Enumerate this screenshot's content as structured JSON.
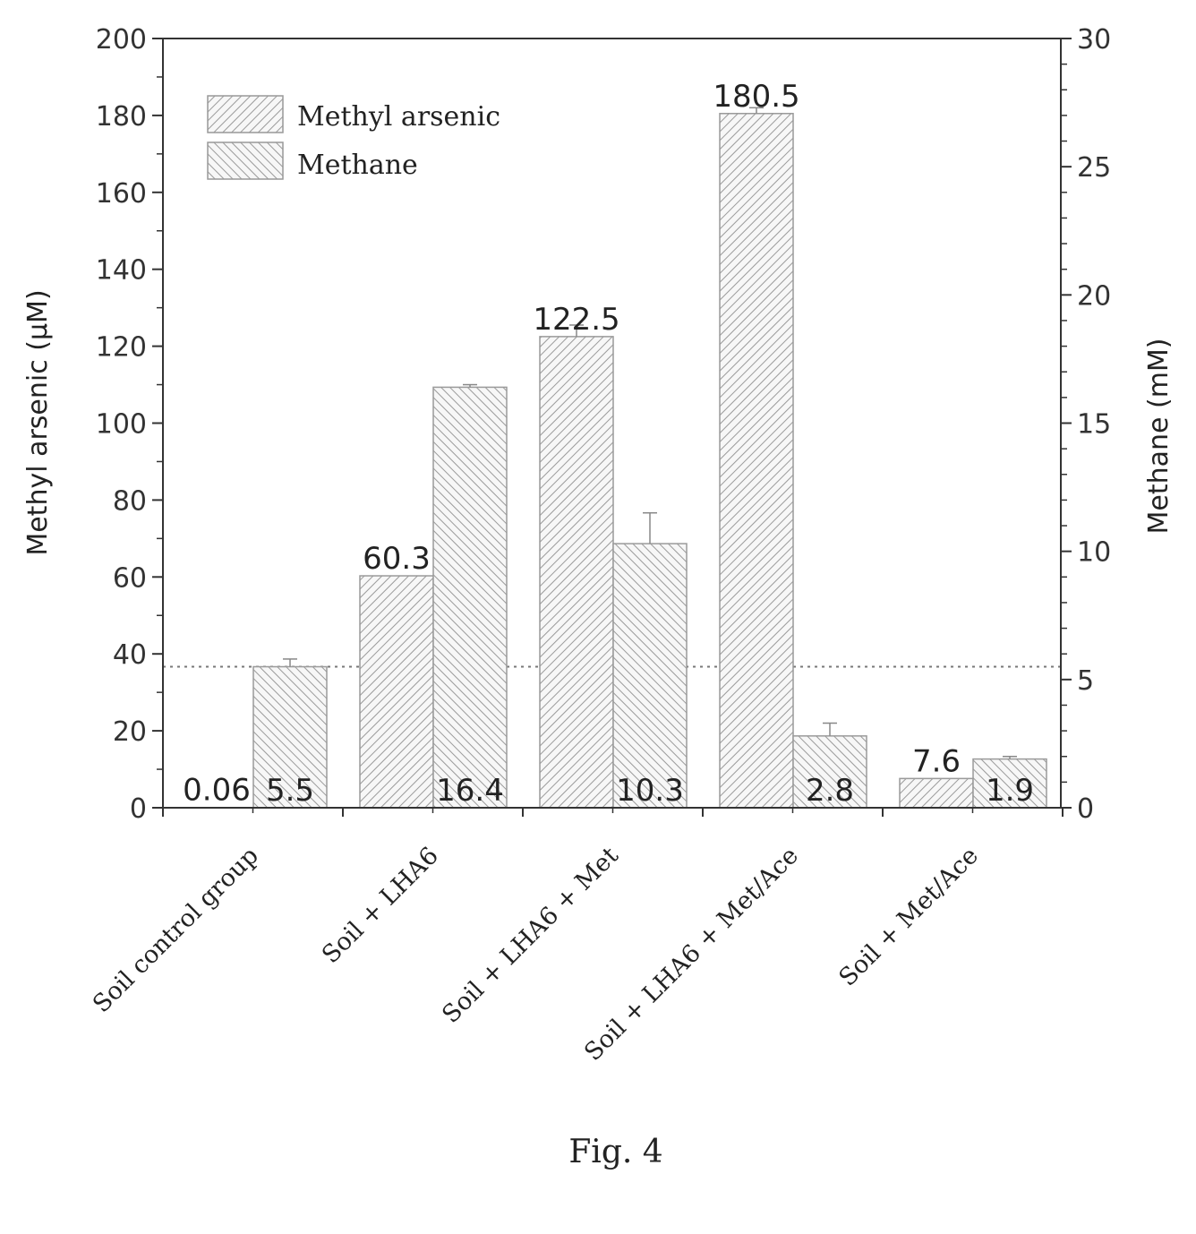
{
  "chart_data": {
    "type": "bar",
    "categories": [
      "Soil control group",
      "Soil + LHA6",
      "Soil + LHA6 + Met",
      "Soil + LHA6 + Met/Ace",
      "Soil + Met/Ace"
    ],
    "series": [
      {
        "name": "Methyl arsenic",
        "axis": "left",
        "values": [
          0.06,
          60.3,
          122.5,
          180.5,
          7.6
        ],
        "error": [
          0,
          0,
          3,
          1.5,
          0
        ],
        "labels": [
          "0.06",
          "60.3",
          "122.5",
          "180.5",
          "7.6"
        ]
      },
      {
        "name": "Methane",
        "axis": "right",
        "values": [
          5.5,
          16.4,
          10.3,
          2.8,
          1.9
        ],
        "error": [
          0.3,
          0.1,
          1.2,
          0.5,
          0.1
        ],
        "labels": [
          "5.5",
          "16.4",
          "10.3",
          "2.8",
          "1.9"
        ]
      }
    ],
    "ylabel_left": "Methyl arsenic (μM)",
    "ylabel_right": "Methane (mM)",
    "ylim_left": [
      0,
      200
    ],
    "ylim_right": [
      0,
      30
    ],
    "yticks_left": [
      "0",
      "20",
      "40",
      "60",
      "80",
      "100",
      "120",
      "140",
      "160",
      "180",
      "200"
    ],
    "yticks_right": [
      "0",
      "5",
      "10",
      "15",
      "20",
      "25",
      "30"
    ],
    "reference_line": {
      "axis": "right",
      "value": 5.5,
      "style": "dotted"
    },
    "legend_placement": "top-left",
    "grid": false
  },
  "caption": "Fig. 4"
}
